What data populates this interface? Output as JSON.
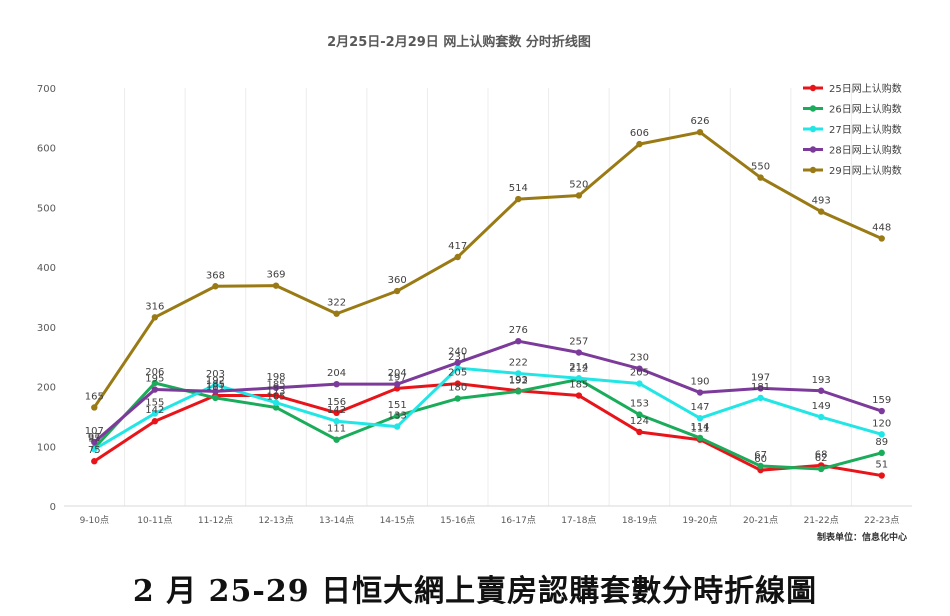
{
  "chart_data": {
    "type": "line",
    "title": "2月25日-2月29日 网上认购套数 分时折线图",
    "categories": [
      "9-10点",
      "10-11点",
      "11-12点",
      "12-13点",
      "13-14点",
      "14-15点",
      "15-16点",
      "16-17点",
      "17-18点",
      "18-19点",
      "19-20点",
      "20-21点",
      "21-22点",
      "22-23点"
    ],
    "ylim": [
      0,
      700
    ],
    "yticks": [
      0,
      100,
      200,
      300,
      400,
      500,
      600,
      700
    ],
    "grid": "vertical",
    "legend": "top-right",
    "series": [
      {
        "name": "25日网上认购数",
        "color": "#e8141a",
        "values": [
          75,
          142,
          185,
          185,
          156,
          197,
          205,
          193,
          185,
          124,
          111,
          60,
          68,
          51
        ]
      },
      {
        "name": "26日网上认购数",
        "color": "#1aac5a",
        "values": [
          97,
          206,
          181,
          165,
          111,
          151,
          180,
          192,
          212,
          153,
          114,
          67,
          62,
          89
        ]
      },
      {
        "name": "27日网上认购数",
        "color": "#22e6e6",
        "values": [
          95,
          155,
          203,
          173,
          142,
          133,
          231,
          222,
          214,
          205,
          147,
          181,
          149,
          120
        ]
      },
      {
        "name": "28日网上认购数",
        "color": "#7c3a9a",
        "values": [
          107,
          195,
          192,
          198,
          204,
          204,
          240,
          276,
          257,
          230,
          190,
          197,
          193,
          159
        ]
      },
      {
        "name": "29日网上认购数",
        "color": "#9a7a14",
        "values": [
          165,
          316,
          368,
          369,
          322,
          360,
          417,
          514,
          520,
          606,
          626,
          550,
          493,
          448
        ]
      }
    ],
    "source_note": "制表单位：信息化中心"
  },
  "caption": "2 月 25-29 日恒大網上賣房認購套數分時折線圖"
}
